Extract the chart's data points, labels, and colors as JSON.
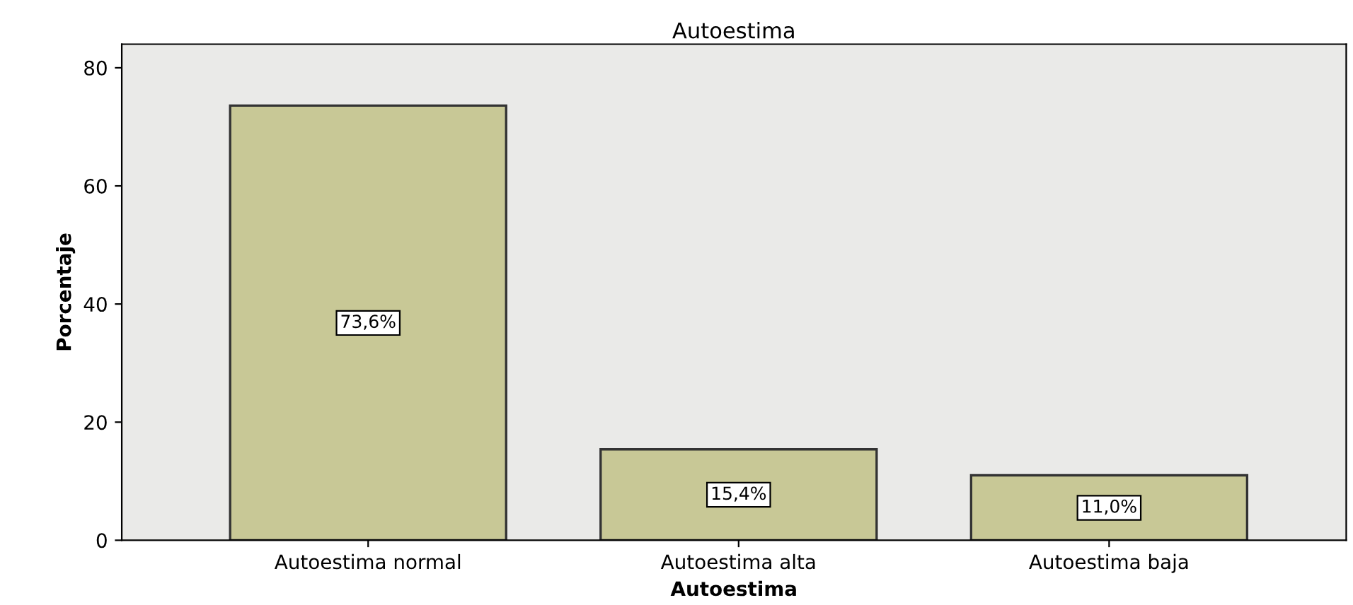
{
  "chart_data": {
    "type": "bar",
    "title": "Autoestima",
    "xlabel": "Autoestima",
    "ylabel": "Porcentaje",
    "categories": [
      "Autoestima normal",
      "Autoestima alta",
      "Autoestima baja"
    ],
    "values": [
      73.6,
      15.4,
      11.0
    ],
    "value_labels": [
      "73,6%",
      "15,4%",
      "11,0%"
    ],
    "color": "#c8c896",
    "ylim": [
      0,
      84
    ],
    "yticks": [
      0,
      20,
      40,
      60,
      80
    ],
    "grid": false,
    "legend": false
  }
}
